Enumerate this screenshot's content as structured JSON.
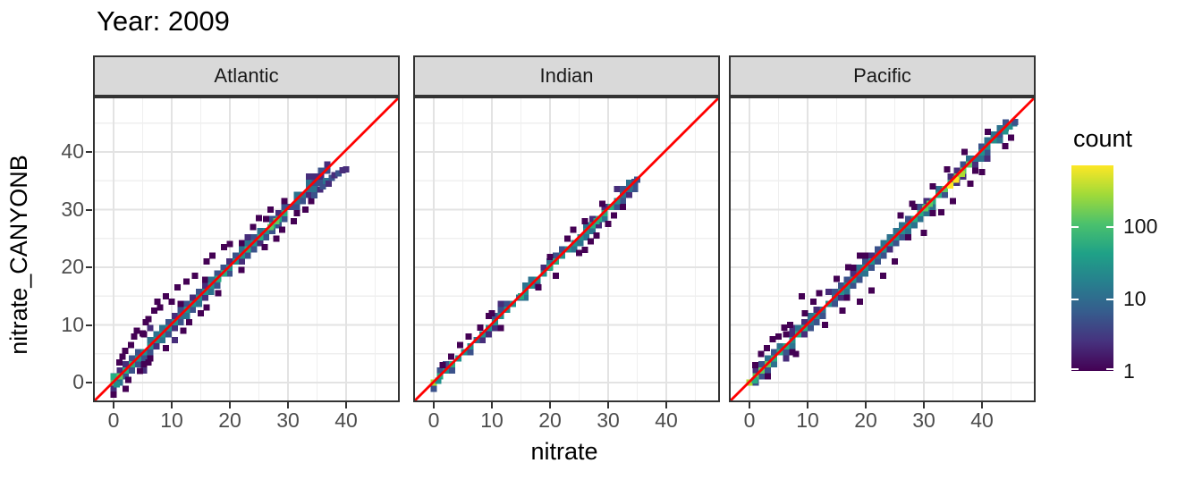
{
  "chart_data": {
    "type": "heatmap",
    "subtype": "bin2d_faceted_scatter",
    "title": "Year: 2009",
    "x": {
      "title": "nitrate",
      "major": [
        0,
        10,
        20,
        30,
        40
      ],
      "minor": [
        5,
        15,
        25,
        35,
        45
      ],
      "range": [
        -3.5,
        49.2
      ]
    },
    "y": {
      "title": "nitrate_CANYONB",
      "major": [
        0,
        10,
        20,
        30,
        40
      ],
      "minor": [
        5,
        15,
        25,
        35,
        45
      ],
      "range": [
        -3.4,
        49.6
      ]
    },
    "identity_line": {
      "color": "#FF0000",
      "equation": "y = x"
    },
    "palette": [
      "#440154",
      "#472d7b",
      "#3b528b",
      "#2c728e",
      "#21918c",
      "#27ad81",
      "#5ec962",
      "#aadc32",
      "#fde725"
    ],
    "facets": [
      {
        "label": "Atlantic",
        "seed": 11,
        "bin": 1.05,
        "diag_max": 37,
        "p1": 0.9,
        "p2": 0.38,
        "spread": [
          [
            0,
            15,
            3
          ],
          [
            15,
            37,
            2
          ]
        ],
        "center": [
          [
            0,
            2,
            6
          ],
          [
            2,
            5,
            5
          ],
          [
            5,
            12,
            4
          ],
          [
            12,
            22,
            4
          ],
          [
            22,
            30,
            5
          ],
          [
            30,
            34,
            3
          ],
          [
            34,
            37,
            2
          ]
        ],
        "outliers": [
          [
            1,
            3.5
          ],
          [
            1.5,
            4.5
          ],
          [
            2,
            5.5
          ],
          [
            3,
            6.5
          ],
          [
            3.5,
            8
          ],
          [
            4,
            9
          ],
          [
            5,
            8.5
          ],
          [
            5.5,
            10.5
          ],
          [
            6,
            11
          ],
          [
            7,
            12.5
          ],
          [
            7.5,
            14
          ],
          [
            8,
            13
          ],
          [
            9,
            15
          ],
          [
            10,
            14
          ],
          [
            11,
            16.5
          ],
          [
            12,
            9
          ],
          [
            12.5,
            17.5
          ],
          [
            13,
            10.5
          ],
          [
            14,
            18.5
          ],
          [
            15,
            12
          ],
          [
            16,
            21
          ],
          [
            17,
            22
          ],
          [
            18,
            15.5
          ],
          [
            19,
            23.5
          ],
          [
            20,
            24
          ],
          [
            22,
            19.5
          ],
          [
            24,
            27
          ],
          [
            25,
            28.5
          ],
          [
            26,
            23.5
          ],
          [
            27,
            30
          ],
          [
            28,
            25
          ],
          [
            29,
            26.5
          ],
          [
            31,
            28
          ],
          [
            33,
            30
          ],
          [
            34,
            31.5
          ],
          [
            2.5,
            0.5
          ],
          [
            4.5,
            2
          ],
          [
            9,
            6
          ],
          [
            6,
            3.5
          ],
          [
            16,
            13
          ]
        ],
        "extras": [
          [
            18,
            18,
            5
          ],
          [
            19,
            19,
            5
          ],
          [
            27,
            27,
            6
          ],
          [
            28,
            28,
            6
          ],
          [
            34.5,
            32.5,
            2
          ],
          [
            35.5,
            33.5,
            1
          ],
          [
            36,
            34,
            2
          ],
          [
            36.5,
            35,
            3
          ],
          [
            37,
            34.5,
            1
          ],
          [
            37.5,
            35.5,
            2
          ],
          [
            38,
            36,
            1
          ],
          [
            38.7,
            36.3,
            2
          ],
          [
            39.4,
            36.8,
            1
          ],
          [
            40,
            37,
            1
          ],
          [
            0,
            1,
            5
          ],
          [
            0.5,
            -0.3,
            4
          ]
        ]
      },
      {
        "label": "Indian",
        "seed": 23,
        "bin": 1.05,
        "diag_max": 35,
        "p1": 0.5,
        "p2": 0.14,
        "spread": [
          [
            0,
            35,
            1.6
          ]
        ],
        "center": [
          [
            0,
            1,
            7
          ],
          [
            1,
            6,
            5
          ],
          [
            6,
            12,
            4
          ],
          [
            12,
            25,
            4
          ],
          [
            25,
            31,
            5
          ],
          [
            31,
            33,
            4
          ],
          [
            33,
            35,
            3
          ]
        ],
        "outliers": [
          [
            1.5,
            3
          ],
          [
            3,
            4.5
          ],
          [
            4.5,
            6.5
          ],
          [
            6,
            8
          ],
          [
            8,
            9.5
          ],
          [
            10,
            12
          ],
          [
            18,
            16.5
          ],
          [
            20,
            21.8
          ],
          [
            21,
            18.5
          ],
          [
            23,
            25
          ],
          [
            24,
            26.5
          ],
          [
            25,
            22.5
          ],
          [
            26,
            28
          ],
          [
            27,
            24.5
          ],
          [
            28,
            25.5
          ],
          [
            29,
            31
          ],
          [
            30,
            27.5
          ],
          [
            31,
            29
          ],
          [
            26,
            23
          ]
        ],
        "extras": [
          [
            0,
            0,
            7
          ],
          [
            15,
            15,
            5
          ],
          [
            20,
            20,
            5
          ],
          [
            21,
            21,
            5
          ],
          [
            28,
            28,
            5
          ],
          [
            33.8,
            34,
            3
          ],
          [
            34.5,
            34.8,
            2
          ],
          [
            35,
            35.2,
            2
          ],
          [
            0.8,
            0.3,
            4
          ]
        ]
      },
      {
        "label": "Pacific",
        "seed": 37,
        "bin": 1.05,
        "diag_max": 45,
        "p1": 0.85,
        "p2": 0.3,
        "spread": [
          [
            0,
            45,
            2
          ]
        ],
        "center": [
          [
            0,
            1,
            7
          ],
          [
            1,
            4,
            6
          ],
          [
            4,
            10,
            5
          ],
          [
            10,
            28,
            4
          ],
          [
            28,
            33,
            5
          ],
          [
            33,
            38,
            6
          ],
          [
            38,
            42,
            4
          ],
          [
            42,
            46,
            3
          ]
        ],
        "outliers": [
          [
            1,
            3
          ],
          [
            2,
            5
          ],
          [
            3,
            6
          ],
          [
            4,
            7.5
          ],
          [
            5,
            8
          ],
          [
            6,
            9.5
          ],
          [
            7,
            10
          ],
          [
            8,
            5
          ],
          [
            9,
            15
          ],
          [
            9.5,
            12
          ],
          [
            11,
            14
          ],
          [
            12,
            15.5
          ],
          [
            13,
            10
          ],
          [
            15,
            18
          ],
          [
            16,
            12.5
          ],
          [
            17,
            20
          ],
          [
            19,
            22
          ],
          [
            19,
            14
          ],
          [
            21,
            16
          ],
          [
            23,
            18.5
          ],
          [
            25,
            21
          ],
          [
            26,
            29
          ],
          [
            28,
            31
          ],
          [
            30,
            26
          ],
          [
            31.5,
            34
          ],
          [
            33,
            29.5
          ],
          [
            34,
            37
          ],
          [
            35,
            31.5
          ],
          [
            37,
            40
          ],
          [
            38,
            34.5
          ],
          [
            40,
            36.5
          ],
          [
            41,
            43.5
          ],
          [
            44,
            41
          ],
          [
            45,
            42.5
          ]
        ],
        "extras": [
          [
            0,
            0,
            7
          ],
          [
            0.9,
            0.4,
            5
          ],
          [
            31,
            31,
            6
          ],
          [
            30.2,
            30.2,
            6
          ],
          [
            34.5,
            34.2,
            8
          ],
          [
            35.5,
            35.2,
            8
          ],
          [
            36.5,
            36.2,
            7
          ],
          [
            44,
            43.6,
            4
          ],
          [
            44.8,
            44.4,
            4
          ],
          [
            45.5,
            45,
            3
          ],
          [
            45.7,
            45.2,
            2
          ]
        ]
      }
    ],
    "legend": {
      "title": "count",
      "scale": "log10",
      "domain_max": 700,
      "ticks": [
        {
          "label": "100",
          "value": 100
        },
        {
          "label": "10",
          "value": 10
        },
        {
          "label": "1",
          "value": 1
        }
      ],
      "gradient_bottom_to_top": [
        "#440154",
        "#46327e",
        "#365c8d",
        "#277f8e",
        "#1fa187",
        "#4ac16d",
        "#a0da39",
        "#fde725"
      ]
    },
    "theme": {
      "panel_bg": "#ffffff",
      "grid_major": "#e3e3e3",
      "grid_minor": "#efefef",
      "panel_border": "#333333",
      "strip_bg": "#d9d9d9",
      "tick_color": "#333333",
      "tick_text": "#4d4d4d"
    }
  }
}
